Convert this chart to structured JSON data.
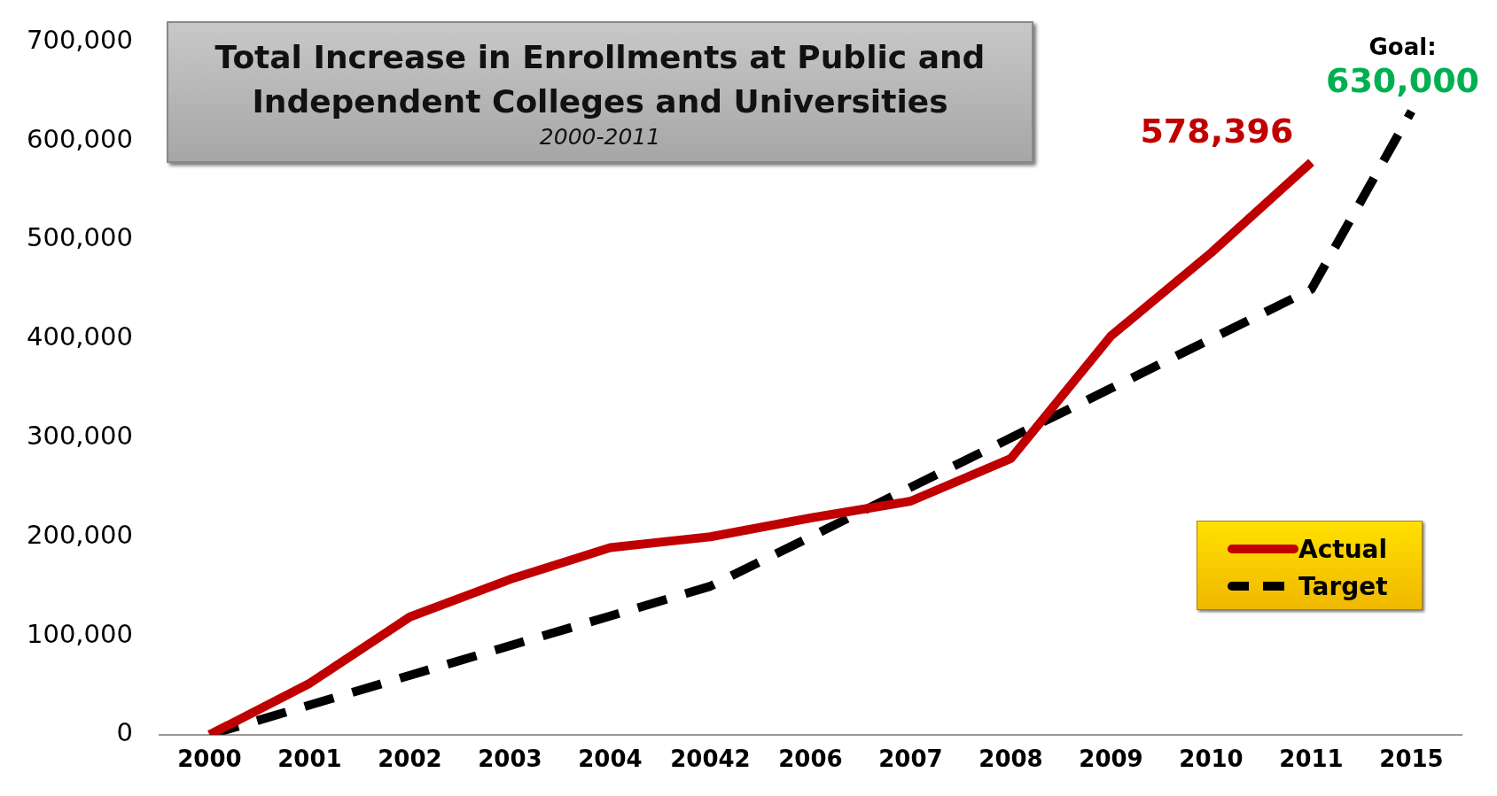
{
  "chart_data": {
    "type": "line",
    "title": "Total Increase in Enrollments at Public and Independent Colleges and Universities",
    "subtitle": "2000-2011",
    "categories": [
      "2000",
      "2001",
      "2002",
      "2003",
      "2004",
      "20042",
      "2006",
      "2007",
      "2008",
      "2009",
      "2010",
      "2011",
      "2015"
    ],
    "series": [
      {
        "name": "Actual",
        "color": "#c00000",
        "line_style": "solid",
        "values": [
          0,
          52000,
          119000,
          157000,
          189000,
          200000,
          219000,
          236000,
          279000,
          403000,
          487000,
          578396,
          null
        ]
      },
      {
        "name": "Target",
        "color": "#000000",
        "line_style": "dashed",
        "values": [
          0,
          30000,
          60000,
          90000,
          120000,
          150000,
          200000,
          250000,
          300000,
          350000,
          400000,
          450000,
          630000
        ]
      }
    ],
    "ylim": [
      0,
      700000
    ],
    "yticks": [
      0,
      {
        "value": 100000,
        "label": "100,000"
      },
      {
        "value": 200000,
        "label": "200,000"
      },
      {
        "value": 300000,
        "label": "300,000"
      },
      {
        "value": 400000,
        "label": "400,000"
      },
      {
        "value": 500000,
        "label": "500,000"
      },
      {
        "value": 600000,
        "label": "600,000"
      },
      {
        "value": 700000,
        "label": "700,000"
      }
    ],
    "grid": false,
    "legend": "right",
    "marker": "none",
    "annotations": [
      {
        "text": "578,396",
        "x": "2011",
        "y": 578396
      },
      {
        "text": "Goal:\n630,000",
        "x": "2015",
        "y": 630000
      }
    ]
  }
}
